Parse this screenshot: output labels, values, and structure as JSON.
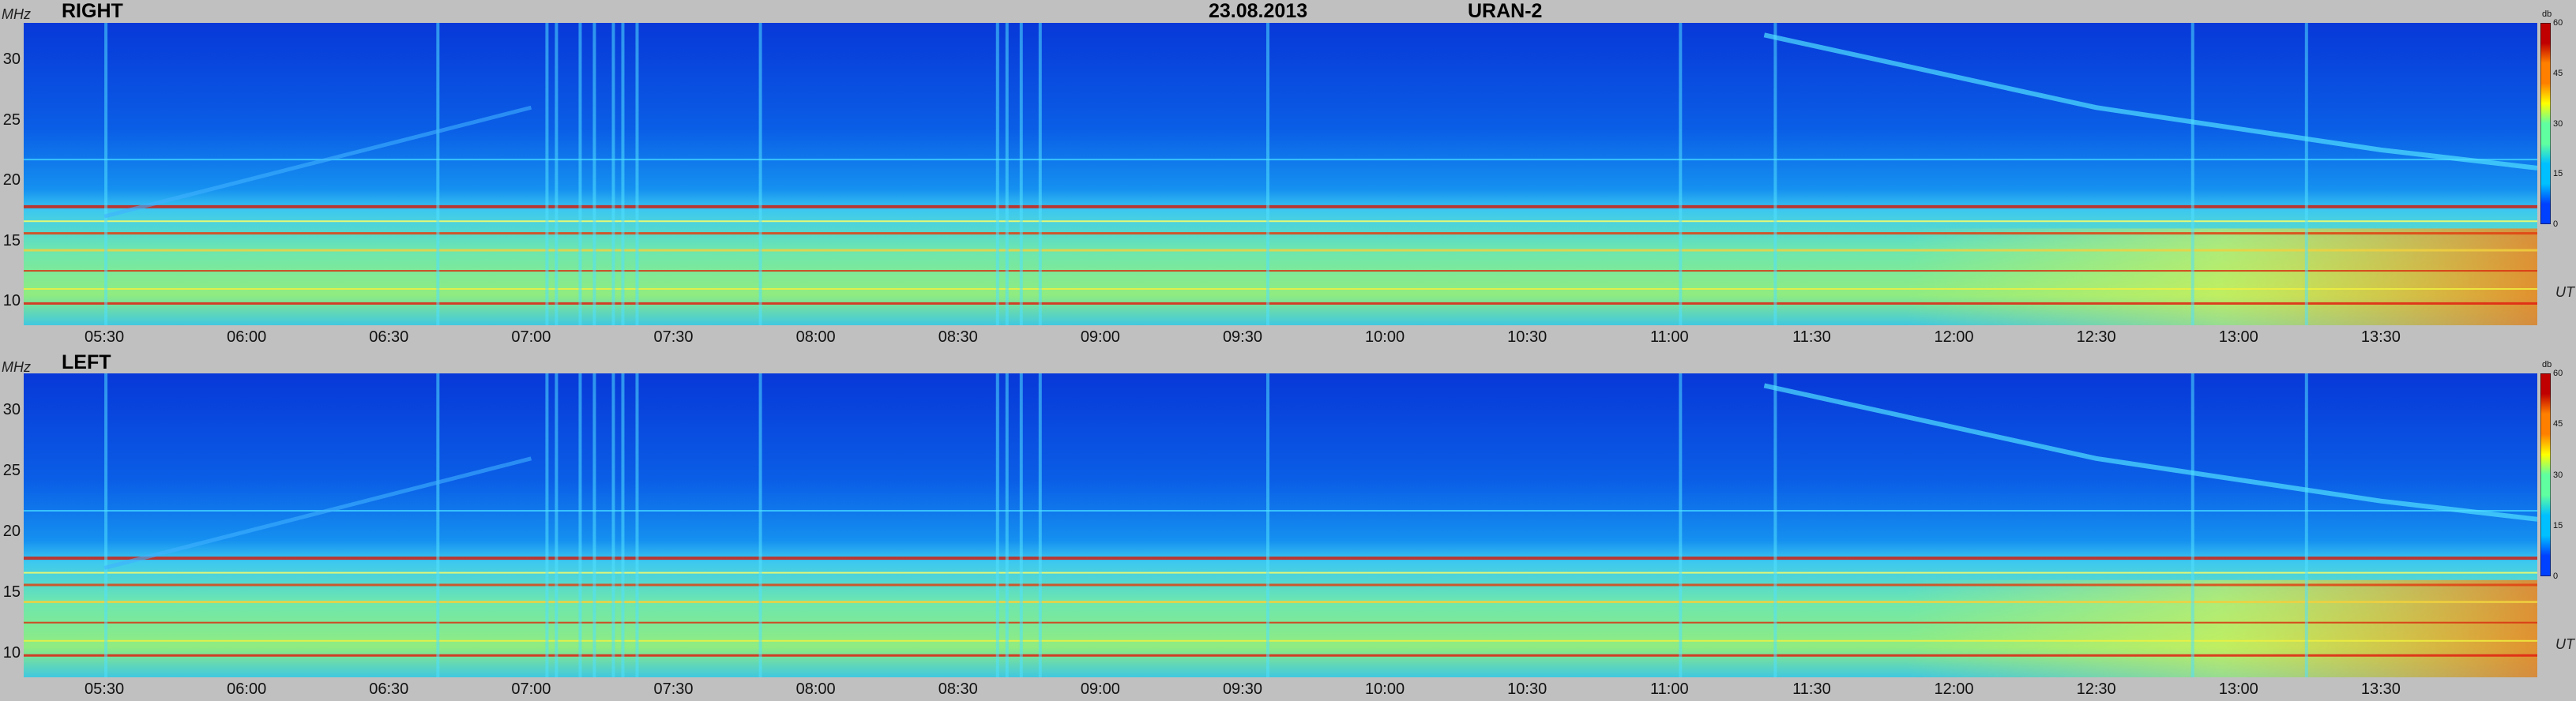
{
  "header": {
    "date": "23.08.2013",
    "instrument": "URAN-2"
  },
  "units": {
    "freq": "MHz",
    "time": "UT",
    "colorbar": "db"
  },
  "colors": {
    "low": "#0033cc",
    "background": "#0a5ee6",
    "mid": "#2ec8ff",
    "yellow": "#f2f040",
    "high": "#e63010",
    "frame": "#c0c0c0"
  },
  "chart_data": [
    {
      "type": "heatmap",
      "title": "RIGHT",
      "ylabel": "MHz",
      "xlabel": "UT",
      "ylim": [
        8,
        33
      ],
      "xlim": [
        "05:13",
        "14:03"
      ],
      "y_ticks": [
        "30",
        "25",
        "20",
        "15",
        "10"
      ],
      "x_ticks": [
        "05:30",
        "06:00",
        "06:30",
        "07:00",
        "07:30",
        "08:00",
        "08:30",
        "09:00",
        "09:30",
        "10:00",
        "10:30",
        "11:00",
        "11:30",
        "12:00",
        "12:30",
        "13:00",
        "13:30"
      ],
      "colorbar": {
        "label": "db",
        "range": [
          0,
          60
        ],
        "ticks": [
          "60",
          "45",
          "30",
          "15",
          "0"
        ]
      }
    },
    {
      "type": "heatmap",
      "title": "LEFT",
      "ylabel": "MHz",
      "xlabel": "UT",
      "ylim": [
        8,
        33
      ],
      "xlim": [
        "05:13",
        "14:03"
      ],
      "y_ticks": [
        "30",
        "25",
        "20",
        "15",
        "10"
      ],
      "x_ticks": [
        "05:30",
        "06:00",
        "06:30",
        "07:00",
        "07:30",
        "08:00",
        "08:30",
        "09:00",
        "09:30",
        "10:00",
        "10:30",
        "11:00",
        "11:30",
        "12:00",
        "12:30",
        "13:00",
        "13:30"
      ],
      "colorbar": {
        "label": "db",
        "range": [
          0,
          60
        ],
        "ticks": [
          "60",
          "45",
          "30",
          "15",
          "0"
        ]
      }
    }
  ]
}
